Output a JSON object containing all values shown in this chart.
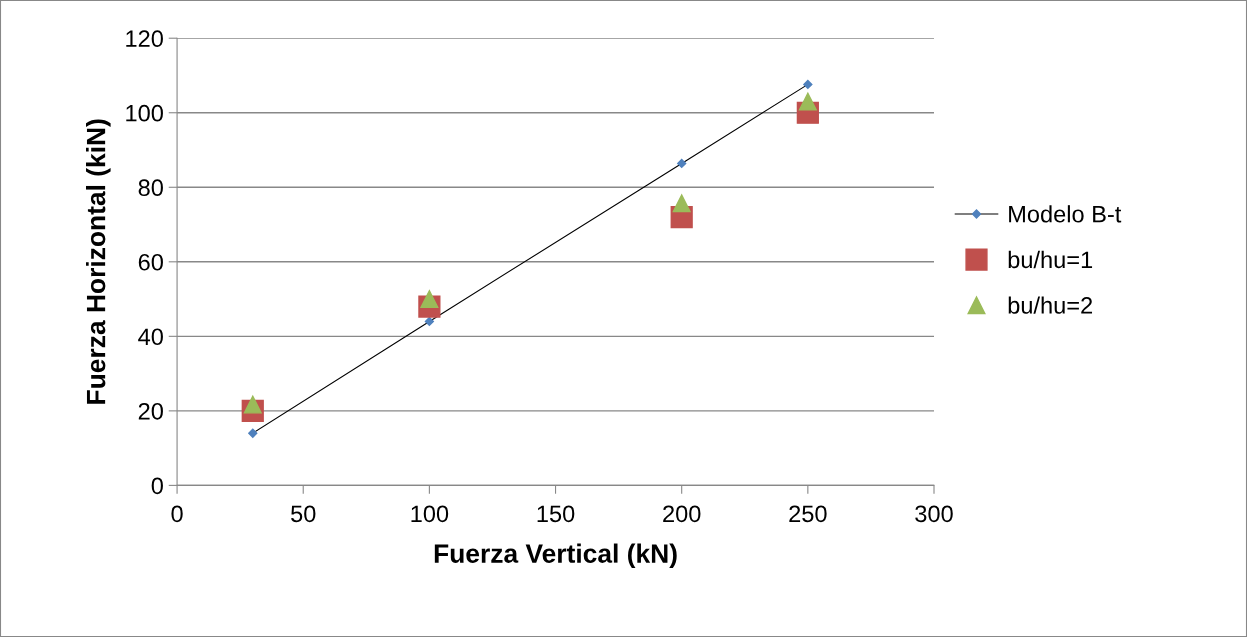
{
  "chart_data": {
    "type": "scatter",
    "xlabel": "Fuerza Vertical (kN)",
    "ylabel": "Fuerza Horizontal (kiN)",
    "xlim": [
      0,
      300
    ],
    "xticks": [
      0,
      50,
      100,
      150,
      200,
      250,
      300
    ],
    "ylim": [
      0,
      120
    ],
    "yticks": [
      0,
      20,
      40,
      60,
      80,
      100,
      120
    ],
    "grid": "y",
    "legend": "right",
    "series": [
      {
        "name": "Modelo B-t",
        "type": "line",
        "marker": "diamond",
        "color": "#4f81bd",
        "x": [
          30,
          100,
          200,
          250
        ],
        "values": [
          14,
          44,
          86.4,
          107.6
        ]
      },
      {
        "name": "bu/hu=1",
        "marker": "square",
        "color": "#c0504d",
        "x": [
          30,
          100,
          200,
          250
        ],
        "values": [
          20,
          48,
          72,
          100
        ]
      },
      {
        "name": "bu/hu=2",
        "marker": "triangle",
        "color": "#9bbb59",
        "x": [
          30,
          100,
          200,
          250
        ],
        "values": [
          21.7,
          50,
          75.7,
          103
        ]
      }
    ]
  }
}
